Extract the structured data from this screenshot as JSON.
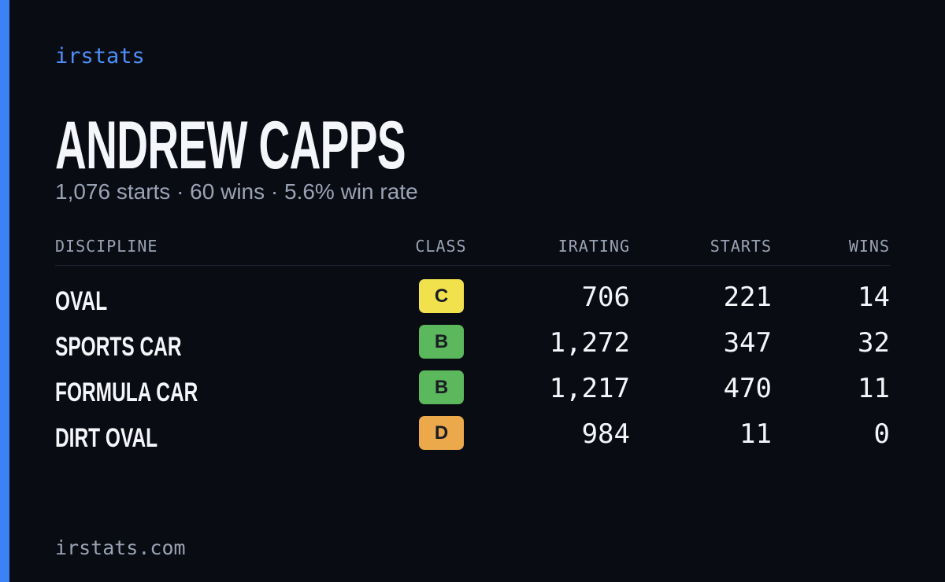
{
  "brand": "irstats",
  "title": "ANDREW CAPPS",
  "subtitle": "1,076 starts · 60 wins · 5.6% win rate",
  "table": {
    "header": [
      "DISCIPLINE",
      "CLASS",
      "IRATING",
      "STARTS",
      "WINS"
    ],
    "rows": [
      [
        "OVAL",
        "C",
        "706",
        "221",
        "14"
      ],
      [
        "SPORTS CAR",
        "B",
        "1,272",
        "347",
        "32"
      ],
      [
        "FORMULA CAR",
        "B",
        "1,217",
        "470",
        "11"
      ],
      [
        "DIRT OVAL",
        "D",
        "984",
        "11",
        "0"
      ]
    ],
    "class_colors": {
      "C": "#f1e14d",
      "B": "#5cb85c",
      "D": "#eba94c"
    }
  },
  "footer": "irstats.com"
}
